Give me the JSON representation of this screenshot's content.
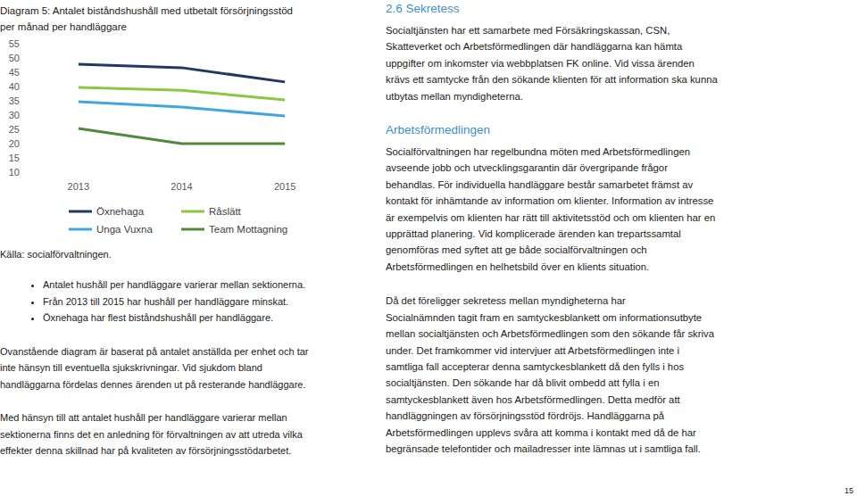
{
  "chart_data": {
    "type": "line",
    "title": "Diagram 5: Antalet biståndshushåll med utbetalt försörjningsstöd per månad per handläggare",
    "categories": [
      "2013",
      "2014",
      "2015"
    ],
    "series": [
      {
        "name": "Öxnehaga",
        "color": "#1f3864",
        "values": [
          47.8,
          46.6,
          41.6
        ]
      },
      {
        "name": "Råslätt",
        "color": "#8dc63f",
        "values": [
          39.7,
          38.7,
          35.3
        ]
      },
      {
        "name": "Unga Vuxna",
        "color": "#41a6e0",
        "values": [
          34.7,
          32.8,
          29.7
        ]
      },
      {
        "name": "Team Mottagning",
        "color": "#4f8a3c",
        "values": [
          25.3,
          20,
          20
        ]
      }
    ],
    "ylim": [
      10,
      55
    ],
    "yticks": [
      10,
      15,
      20,
      25,
      30,
      35,
      40,
      45,
      50,
      55
    ],
    "grid": false,
    "legend": "bottom"
  },
  "figure_source": "Källa: socialförvaltningen.",
  "left_column": {
    "bullets": [
      "Antalet hushåll per handläggare varierar mellan sektionerna.",
      "Från 2013 till 2015 har hushåll per handläggare minskat.",
      "Öxnehaga har flest biståndshushåll per handläggare."
    ],
    "paragraphs": [
      [
        "Ovanstående diagram är baserat på antalet anställda per enhet och tar",
        "inte hänsyn till eventuella sjukskrivningar. Vid sjukdom bland",
        "handläggarna fördelas dennes ärenden ut på resterande handläggare."
      ],
      [
        "Med hänsyn till att antalet hushåll per handläggare varierar mellan",
        "sektionerna finns det en anledning för förvaltningen av att utreda vilka",
        "effekter denna skillnad har på kvaliteten av försörjningsstödarbetet."
      ]
    ]
  },
  "right_column": [
    {
      "heading": "2.6 Sekretess",
      "paragraphs": [
        [
          "Socialtjänsten har ett samarbete med Försäkringskassan, CSN,",
          "Skatteverket och Arbetsförmedlingen där handläggarna kan hämta",
          "uppgifter om inkomster via webbplatsen FK online. Vid vissa ärenden",
          "krävs ett samtycke från den sökande klienten för att information ska kunna",
          "utbytas mellan myndigheterna."
        ]
      ]
    },
    {
      "heading": "Arbetsförmedlingen",
      "paragraphs": [
        [
          "Socialförvaltningen har regelbundna möten med Arbetsförmedlingen",
          "avseende jobb och utvecklingsgarantin där övergripande frågor",
          "behandlas. För individuella handläggare består samarbetet främst av",
          "kontakt för inhämtande av information om klienter. Information av intresse",
          "är exempelvis om klienten har rätt till aktivitetsstöd och om klienten har en",
          "upprättad planering. Vid komplicerade ärenden kan trepartssamtal",
          "genomföras med syftet att ge både socialförvaltningen och",
          "Arbetsförmedlingen en helhetsbild över en klients situation."
        ],
        [
          "Då det föreligger sekretess mellan myndigheterna har",
          "Socialnämnden tagit fram en samtyckesblankett om informationsutbyte",
          "mellan socialtjänsten och Arbetsförmedlingen som den sökande får skriva",
          "under. Det framkommer vid intervjuer att Arbetsförmedlingen inte i",
          "samtliga fall accepterar denna samtyckesblankett då den fylls i hos",
          "socialtjänsten. Den sökande har då blivit ombedd att fylla i en",
          "samtyckesblankett även hos Arbetsförmedlingen. Detta medför att",
          "handläggningen av försörjningsstöd fördröjs. Handläggarna på",
          "Arbetsförmedlingen upplevs svåra att komma i kontakt med då de har",
          "begränsade telefontider och mailadresser inte lämnas ut i samtliga fall."
        ]
      ]
    }
  ],
  "page_number": "15"
}
